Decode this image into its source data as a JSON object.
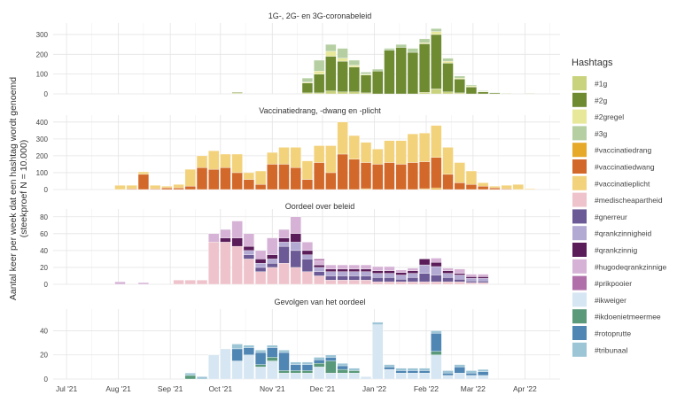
{
  "figure": {
    "ylabel_line1": "Aantal keer per week dat een hashtag wordt genoemd",
    "ylabel_line2": "(steekproef N = 10.000)",
    "legend_title": "Hashtags",
    "x_tick_labels": [
      "Jul '21",
      "Aug '21",
      "Sep '21",
      "Oct '21",
      "Nov '21",
      "Dec '21",
      "Jan '22",
      "Feb '22",
      "Mar '22",
      "Apr '22"
    ]
  },
  "legend": [
    {
      "label": "#1g",
      "color": "#c9d27d"
    },
    {
      "label": "#2g",
      "color": "#6f8b32"
    },
    {
      "label": "#2gregel",
      "color": "#e8e89a"
    },
    {
      "label": "#3g",
      "color": "#b5cfa3"
    },
    {
      "label": "#vaccinatiedrang",
      "color": "#e6a92a"
    },
    {
      "label": "#vaccinatiedwang",
      "color": "#d2692a"
    },
    {
      "label": "#vaccinatieplicht",
      "color": "#f3d27c"
    },
    {
      "label": "#medischeapartheid",
      "color": "#efc3cc"
    },
    {
      "label": "#gnerreur",
      "color": "#6b5a95"
    },
    {
      "label": "#qrankzinnigheid",
      "color": "#b3aad3"
    },
    {
      "label": "#qrankzinnig",
      "color": "#5a1d5a"
    },
    {
      "label": "#hugodeqrankzinnige",
      "color": "#d6b3d6"
    },
    {
      "label": "#prikpooier",
      "color": "#b06fa8"
    },
    {
      "label": "#ikweiger",
      "color": "#d6e6f2"
    },
    {
      "label": "#ikdoenietmeermee",
      "color": "#5a9a7a"
    },
    {
      "label": "#rotoprutte",
      "color": "#4f86b3"
    },
    {
      "label": "#tribunaal",
      "color": "#9cc5d6"
    }
  ],
  "chart_data": [
    {
      "type": "bar",
      "stacked": true,
      "title": "1G-, 2G- en 3G-coronabeleid",
      "x": [
        "2021-07-05",
        "2021-07-12",
        "2021-07-19",
        "2021-07-26",
        "2021-08-02",
        "2021-08-09",
        "2021-08-16",
        "2021-08-23",
        "2021-08-30",
        "2021-09-06",
        "2021-09-13",
        "2021-09-20",
        "2021-09-27",
        "2021-10-04",
        "2021-10-11",
        "2021-10-18",
        "2021-10-25",
        "2021-11-01",
        "2021-11-08",
        "2021-11-15",
        "2021-11-22",
        "2021-11-29",
        "2021-12-06",
        "2021-12-13",
        "2021-12-20",
        "2021-12-27",
        "2022-01-03",
        "2022-01-10",
        "2022-01-17",
        "2022-01-24",
        "2022-01-31",
        "2022-02-07",
        "2022-02-14",
        "2022-02-21",
        "2022-02-28",
        "2022-03-07",
        "2022-03-14",
        "2022-03-21",
        "2022-03-28",
        "2022-04-04"
      ],
      "ylim": [
        0,
        340
      ],
      "yticks": [
        0,
        100,
        200,
        300
      ],
      "series": [
        {
          "name": "#1g",
          "color": "#c9d27d",
          "values": [
            0,
            0,
            0,
            0,
            0,
            0,
            0,
            0,
            0,
            0,
            0,
            0,
            0,
            0,
            3,
            0,
            0,
            0,
            0,
            0,
            5,
            5,
            15,
            10,
            10,
            5,
            0,
            0,
            0,
            0,
            8,
            25,
            10,
            5,
            0,
            0,
            0,
            0,
            0,
            0
          ]
        },
        {
          "name": "#2g",
          "color": "#6f8b32",
          "values": [
            0,
            0,
            0,
            0,
            0,
            0,
            0,
            0,
            0,
            0,
            0,
            0,
            0,
            0,
            4,
            0,
            0,
            0,
            0,
            0,
            50,
            95,
            175,
            155,
            125,
            90,
            115,
            220,
            235,
            210,
            245,
            275,
            145,
            70,
            35,
            10,
            5,
            2,
            0,
            2
          ]
        },
        {
          "name": "#2gregel",
          "color": "#e8e89a",
          "values": [
            0,
            0,
            0,
            0,
            0,
            0,
            0,
            0,
            0,
            0,
            0,
            0,
            0,
            0,
            0,
            0,
            0,
            0,
            0,
            0,
            5,
            15,
            25,
            15,
            10,
            5,
            0,
            0,
            0,
            0,
            5,
            15,
            10,
            5,
            5,
            3,
            0,
            0,
            0,
            0
          ]
        },
        {
          "name": "#3g",
          "color": "#b5cfa3",
          "values": [
            0,
            0,
            0,
            0,
            0,
            0,
            0,
            0,
            0,
            0,
            0,
            0,
            0,
            0,
            0,
            0,
            0,
            0,
            0,
            0,
            20,
            55,
            35,
            50,
            25,
            10,
            10,
            10,
            15,
            20,
            20,
            15,
            15,
            10,
            5,
            3,
            2,
            0,
            0,
            0
          ]
        }
      ]
    },
    {
      "type": "bar",
      "stacked": true,
      "title": "Vaccinatiedrang, -dwang en -plicht",
      "x": [
        "2021-07-05",
        "2021-07-12",
        "2021-07-19",
        "2021-07-26",
        "2021-08-02",
        "2021-08-09",
        "2021-08-16",
        "2021-08-23",
        "2021-08-30",
        "2021-09-06",
        "2021-09-13",
        "2021-09-20",
        "2021-09-27",
        "2021-10-04",
        "2021-10-11",
        "2021-10-18",
        "2021-10-25",
        "2021-11-01",
        "2021-11-08",
        "2021-11-15",
        "2021-11-22",
        "2021-11-29",
        "2021-12-06",
        "2021-12-13",
        "2021-12-20",
        "2021-12-27",
        "2022-01-03",
        "2022-01-10",
        "2022-01-17",
        "2022-01-24",
        "2022-01-31",
        "2022-02-07",
        "2022-02-14",
        "2022-02-21",
        "2022-02-28",
        "2022-03-07",
        "2022-03-14",
        "2022-03-21",
        "2022-03-28",
        "2022-04-04"
      ],
      "ylim": [
        0,
        420
      ],
      "yticks": [
        0,
        100,
        200,
        300,
        400
      ],
      "series": [
        {
          "name": "#vaccinatiedrang",
          "color": "#e6a92a",
          "values": [
            0,
            0,
            0,
            0,
            0,
            0,
            0,
            0,
            0,
            0,
            0,
            0,
            0,
            0,
            0,
            0,
            0,
            0,
            0,
            0,
            0,
            0,
            0,
            0,
            0,
            5,
            0,
            0,
            0,
            0,
            5,
            10,
            0,
            0,
            0,
            0,
            0,
            0,
            0,
            0
          ]
        },
        {
          "name": "#vaccinatiedwang",
          "color": "#d2692a",
          "values": [
            0,
            0,
            0,
            0,
            0,
            5,
            90,
            5,
            10,
            10,
            20,
            130,
            120,
            130,
            100,
            60,
            30,
            150,
            150,
            130,
            60,
            160,
            100,
            210,
            180,
            155,
            150,
            160,
            150,
            160,
            160,
            180,
            90,
            40,
            30,
            20,
            10,
            5,
            0,
            0
          ]
        },
        {
          "name": "#vaccinatieplicht",
          "color": "#f3d27c",
          "values": [
            0,
            0,
            0,
            0,
            25,
            20,
            15,
            20,
            10,
            20,
            100,
            70,
            110,
            80,
            110,
            40,
            80,
            70,
            100,
            120,
            110,
            100,
            160,
            190,
            140,
            120,
            90,
            130,
            140,
            170,
            170,
            190,
            160,
            120,
            80,
            20,
            10,
            20,
            30,
            5
          ]
        }
      ]
    },
    {
      "type": "bar",
      "stacked": true,
      "title": "Oordeel over beleid",
      "x": [
        "2021-07-05",
        "2021-07-12",
        "2021-07-19",
        "2021-07-26",
        "2021-08-02",
        "2021-08-09",
        "2021-08-16",
        "2021-08-23",
        "2021-08-30",
        "2021-09-06",
        "2021-09-13",
        "2021-09-20",
        "2021-09-27",
        "2021-10-04",
        "2021-10-11",
        "2021-10-18",
        "2021-10-25",
        "2021-11-01",
        "2021-11-08",
        "2021-11-15",
        "2021-11-22",
        "2021-11-29",
        "2021-12-06",
        "2021-12-13",
        "2021-12-20",
        "2021-12-27",
        "2022-01-03",
        "2022-01-10",
        "2022-01-17",
        "2022-01-24",
        "2022-01-31",
        "2022-02-07",
        "2022-02-14",
        "2022-02-21",
        "2022-02-28",
        "2022-03-07",
        "2022-03-14",
        "2022-03-21",
        "2022-03-28",
        "2022-04-04"
      ],
      "ylim": [
        0,
        85
      ],
      "yticks": [
        0,
        20,
        40,
        60,
        80
      ],
      "series": [
        {
          "name": "#medischeapartheid",
          "color": "#efc3cc",
          "values": [
            0,
            0,
            0,
            0,
            0,
            0,
            0,
            0,
            0,
            5,
            5,
            5,
            50,
            50,
            45,
            30,
            15,
            20,
            25,
            20,
            15,
            10,
            5,
            5,
            5,
            5,
            3,
            3,
            3,
            3,
            3,
            3,
            3,
            3,
            2,
            2,
            0,
            0,
            0,
            0
          ]
        },
        {
          "name": "#gnerreur",
          "color": "#6b5a95",
          "values": [
            0,
            0,
            0,
            0,
            0,
            0,
            0,
            0,
            0,
            0,
            0,
            0,
            0,
            0,
            0,
            5,
            5,
            5,
            20,
            20,
            15,
            5,
            5,
            5,
            5,
            5,
            5,
            5,
            3,
            5,
            10,
            8,
            5,
            3,
            2,
            2,
            0,
            0,
            0,
            0
          ]
        },
        {
          "name": "#qrankzinnigheid",
          "color": "#b3aad3",
          "values": [
            0,
            0,
            0,
            0,
            0,
            0,
            0,
            0,
            0,
            0,
            0,
            0,
            0,
            0,
            0,
            5,
            5,
            5,
            5,
            10,
            5,
            5,
            5,
            5,
            5,
            5,
            5,
            5,
            5,
            5,
            10,
            10,
            5,
            5,
            3,
            3,
            0,
            0,
            0,
            0
          ]
        },
        {
          "name": "#qrankzinnig",
          "color": "#5a1d5a",
          "values": [
            0,
            0,
            0,
            0,
            0,
            0,
            0,
            0,
            0,
            0,
            0,
            0,
            0,
            5,
            10,
            5,
            5,
            5,
            5,
            10,
            5,
            3,
            3,
            3,
            3,
            3,
            3,
            3,
            3,
            3,
            7,
            5,
            3,
            2,
            2,
            2,
            0,
            0,
            0,
            0
          ]
        },
        {
          "name": "#hugodeqrankzinnige",
          "color": "#d6b3d6",
          "values": [
            0,
            0,
            0,
            0,
            3,
            0,
            2,
            0,
            0,
            0,
            0,
            0,
            10,
            10,
            20,
            15,
            10,
            20,
            10,
            20,
            10,
            5,
            5,
            5,
            5,
            5,
            5,
            5,
            3,
            3,
            0,
            5,
            3,
            5,
            3,
            3,
            0,
            0,
            0,
            0
          ]
        },
        {
          "name": "#prikpooier",
          "color": "#b06fa8",
          "values": [
            0,
            0,
            0,
            0,
            0,
            0,
            0,
            0,
            0,
            0,
            0,
            0,
            0,
            0,
            0,
            0,
            0,
            0,
            0,
            0,
            0,
            2,
            0,
            0,
            0,
            0,
            0,
            0,
            0,
            0,
            0,
            0,
            0,
            0,
            0,
            0,
            0,
            0,
            0,
            0
          ]
        }
      ]
    },
    {
      "type": "bar",
      "stacked": true,
      "title": "Gevolgen van het oordeel",
      "x": [
        "2021-07-05",
        "2021-07-12",
        "2021-07-19",
        "2021-07-26",
        "2021-08-02",
        "2021-08-09",
        "2021-08-16",
        "2021-08-23",
        "2021-08-30",
        "2021-09-06",
        "2021-09-13",
        "2021-09-20",
        "2021-09-27",
        "2021-10-04",
        "2021-10-11",
        "2021-10-18",
        "2021-10-25",
        "2021-11-01",
        "2021-11-08",
        "2021-11-15",
        "2021-11-22",
        "2021-11-29",
        "2021-12-06",
        "2021-12-13",
        "2021-12-20",
        "2021-12-27",
        "2022-01-03",
        "2022-01-10",
        "2022-01-17",
        "2022-01-24",
        "2022-01-31",
        "2022-02-07",
        "2022-02-14",
        "2022-02-21",
        "2022-02-28",
        "2022-03-07",
        "2022-03-14",
        "2022-03-21",
        "2022-03-28",
        "2022-04-04"
      ],
      "ylim": [
        0,
        55
      ],
      "yticks": [
        0,
        20,
        40
      ],
      "series": [
        {
          "name": "#ikweiger",
          "color": "#d6e6f2",
          "values": [
            0,
            0,
            0,
            0,
            0,
            0,
            0,
            0,
            0,
            0,
            0,
            0,
            20,
            25,
            15,
            20,
            10,
            15,
            5,
            5,
            5,
            10,
            5,
            5,
            5,
            2,
            45,
            8,
            5,
            5,
            5,
            20,
            3,
            5,
            3,
            3,
            0,
            0,
            0,
            0
          ]
        },
        {
          "name": "#ikdoenietmeermee",
          "color": "#5a9a7a",
          "values": [
            0,
            0,
            0,
            0,
            0,
            0,
            0,
            0,
            0,
            0,
            3,
            0,
            0,
            0,
            0,
            0,
            2,
            3,
            2,
            2,
            2,
            3,
            10,
            3,
            2,
            0,
            0,
            0,
            0,
            0,
            0,
            3,
            0,
            0,
            0,
            0,
            0,
            0,
            0,
            0
          ]
        },
        {
          "name": "#rotoprutte",
          "color": "#4f86b3",
          "values": [
            0,
            0,
            0,
            0,
            0,
            0,
            0,
            0,
            0,
            0,
            0,
            0,
            0,
            0,
            10,
            6,
            10,
            8,
            15,
            5,
            5,
            3,
            3,
            3,
            0,
            0,
            0,
            2,
            2,
            2,
            2,
            15,
            2,
            5,
            2,
            3,
            0,
            0,
            0,
            0
          ]
        },
        {
          "name": "#tribunaal",
          "color": "#9cc5d6",
          "values": [
            0,
            0,
            0,
            0,
            0,
            0,
            0,
            0,
            0,
            0,
            2,
            2,
            0,
            0,
            4,
            2,
            2,
            2,
            2,
            2,
            2,
            2,
            2,
            2,
            2,
            0,
            2,
            2,
            2,
            2,
            2,
            2,
            2,
            2,
            2,
            2,
            0,
            0,
            0,
            0
          ]
        }
      ]
    }
  ]
}
